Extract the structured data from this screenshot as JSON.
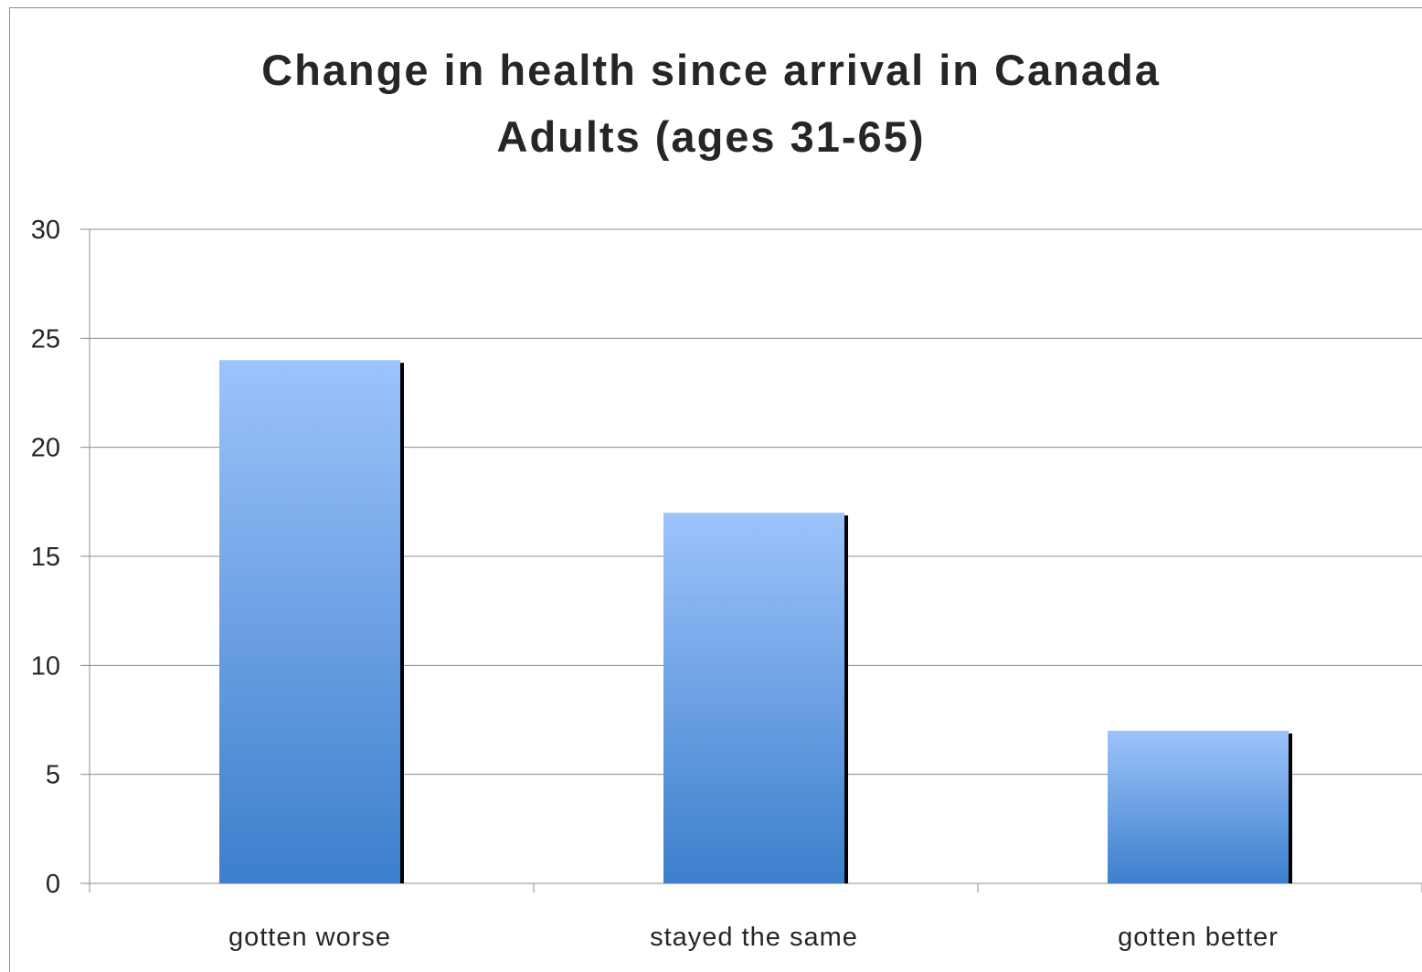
{
  "chart_data": {
    "type": "bar",
    "title": "Change in health since arrival in Canada",
    "subtitle": "Adults (ages 31-65)",
    "categories": [
      "gotten worse",
      "stayed the same",
      "gotten better"
    ],
    "values": [
      24,
      17,
      7
    ],
    "yticks": [
      "0",
      "5",
      "10",
      "15",
      "20",
      "25",
      "30"
    ],
    "ylim": [
      0,
      30
    ],
    "grid": true,
    "legend": "none",
    "colors": {
      "bar_top": "#9dc3fb",
      "bar_bottom": "#3c7fcc",
      "bar_shadow": "#000000",
      "grid": "#8c8c8c",
      "text": "#262626"
    }
  }
}
